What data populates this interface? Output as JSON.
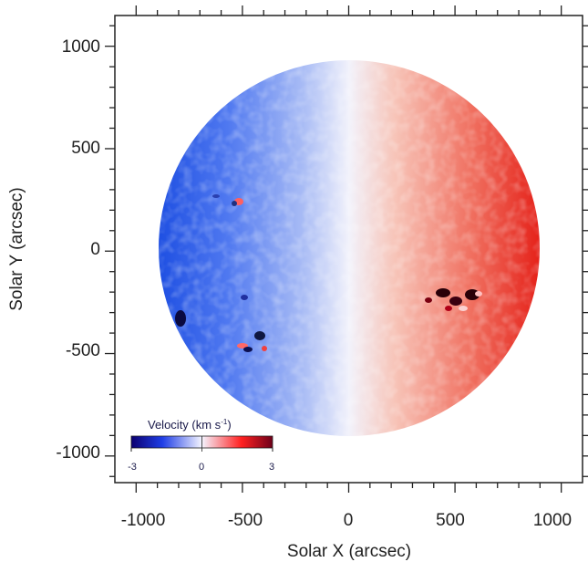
{
  "plot": {
    "xlabel": "Solar X (arcsec)",
    "ylabel": "Solar Y (arcsec)",
    "x_ticks": [
      "-1000",
      "-500",
      "0",
      "500",
      "1000"
    ],
    "y_ticks": [
      "1000",
      "500",
      "0",
      "-500",
      "-1000"
    ],
    "x_range": [
      -1100,
      1100
    ],
    "y_range": [
      -1130,
      1150
    ]
  },
  "colorbar": {
    "title_prefix": "Velocity (km s",
    "title_exp": "-1",
    "title_suffix": ")",
    "tick_min": "-3",
    "tick_mid": "0",
    "tick_max": "3",
    "colors": {
      "negative": "#0b0070",
      "mid_negative": "#1f3ee6",
      "zero": "#f4f4ff",
      "mid_positive": "#ff2020",
      "positive": "#6e001a"
    }
  },
  "disk": {
    "limb_color_left": "#1f4ee0",
    "center_color": "#f3f3fb",
    "limb_color_right": "#e62418"
  }
}
